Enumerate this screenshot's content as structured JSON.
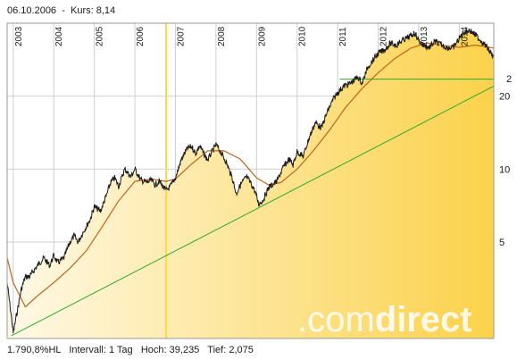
{
  "header": {
    "date": "06.10.2006",
    "separator": "-",
    "price_label": "Kurs:",
    "price_value": "8,14"
  },
  "footer": {
    "change": "1.790,8%HL",
    "interval_label": "Intervall:",
    "interval_value": "1 Tag",
    "high_label": "Hoch:",
    "high_value": "39,235",
    "low_label": "Tief:",
    "low_value": "2,075"
  },
  "logo": {
    "prefix": ".com",
    "suffix": "direct"
  },
  "chart_data": {
    "type": "line",
    "scale": "log",
    "x_tick_labels": [
      "2003",
      "2004",
      "2005",
      "2006",
      "2007",
      "2008",
      "2009",
      "2010",
      "2011",
      "2012",
      "2013",
      "2014"
    ],
    "y_tick_labels": [
      "5",
      "10",
      "20"
    ],
    "y_tick_values": [
      5,
      10,
      20
    ],
    "y_tick_labels_partial": [
      "2"
    ],
    "xlim": [
      2002.85,
      2014.85
    ],
    "ylim": [
      2.0,
      40.0
    ],
    "marker_date": "06.10.2006",
    "marker_x": 2006.77,
    "marker_value": 8.14,
    "grid": true,
    "colors": {
      "price": "#1a1a1a",
      "average": "#c0641c",
      "trendline": "#2ea82e",
      "resistance": "#2ea82e",
      "marker": "#ffd84a",
      "grid": "#cfcfcf",
      "fill_light": "#fff9e6",
      "fill_dark": "#fbd24a"
    },
    "series": [
      {
        "role": "price",
        "x": [
          2002.85,
          2002.95,
          2003.0,
          2003.1,
          2003.2,
          2003.3,
          2003.4,
          2003.5,
          2003.6,
          2003.75,
          2003.9,
          2004.0,
          2004.1,
          2004.25,
          2004.4,
          2004.5,
          2004.6,
          2004.75,
          2004.9,
          2005.0,
          2005.15,
          2005.3,
          2005.4,
          2005.5,
          2005.6,
          2005.75,
          2005.9,
          2006.0,
          2006.15,
          2006.3,
          2006.4,
          2006.5,
          2006.6,
          2006.77,
          2006.9,
          2007.0,
          2007.15,
          2007.3,
          2007.4,
          2007.5,
          2007.6,
          2007.7,
          2007.8,
          2007.9,
          2008.0,
          2008.1,
          2008.25,
          2008.4,
          2008.5,
          2008.6,
          2008.75,
          2008.85,
          2008.95,
          2009.05,
          2009.15,
          2009.3,
          2009.5,
          2009.65,
          2009.8,
          2009.9,
          2010.0,
          2010.15,
          2010.3,
          2010.45,
          2010.6,
          2010.75,
          2010.9,
          2011.0,
          2011.15,
          2011.3,
          2011.5,
          2011.6,
          2011.75,
          2011.9,
          2012.0,
          2012.15,
          2012.3,
          2012.45,
          2012.6,
          2012.75,
          2012.9,
          2013.0,
          2013.1,
          2013.25,
          2013.4,
          2013.55,
          2013.7,
          2013.85,
          2014.0,
          2014.1,
          2014.25,
          2014.4,
          2014.55,
          2014.7,
          2014.85
        ],
        "values": [
          3.4,
          2.5,
          2.1,
          2.6,
          3.2,
          3.6,
          3.6,
          3.8,
          4.0,
          4.3,
          4.0,
          4.4,
          4.1,
          4.3,
          5.0,
          5.3,
          5.0,
          5.6,
          6.2,
          7.0,
          6.7,
          7.8,
          8.8,
          9.2,
          8.5,
          10.0,
          9.3,
          10.0,
          9.0,
          8.8,
          9.0,
          8.6,
          8.9,
          8.14,
          8.6,
          9.2,
          11.0,
          12.2,
          12.4,
          11.6,
          12.5,
          11.5,
          10.9,
          11.8,
          12.6,
          11.9,
          10.7,
          9.2,
          7.9,
          8.6,
          9.3,
          8.8,
          8.2,
          7.2,
          7.4,
          8.4,
          8.9,
          10.1,
          11.0,
          10.4,
          11.8,
          11.3,
          13.5,
          15.6,
          14.8,
          17.3,
          19.5,
          20.7,
          22.0,
          22.5,
          24.0,
          22.6,
          26.5,
          28.6,
          30.0,
          31.0,
          33.0,
          32.5,
          34.0,
          35.0,
          36.5,
          34.0,
          32.6,
          31.7,
          33.6,
          32.6,
          31.7,
          31.7,
          34.6,
          36.6,
          37.5,
          35.7,
          33.7,
          31.5,
          28.8
        ]
      },
      {
        "role": "average",
        "x": [
          2002.85,
          2003.0,
          2003.3,
          2003.6,
          2004.0,
          2004.4,
          2004.8,
          2005.2,
          2005.6,
          2006.0,
          2006.4,
          2006.77,
          2007.0,
          2007.4,
          2007.8,
          2008.2,
          2008.6,
          2009.0,
          2009.3,
          2009.6,
          2010.0,
          2010.4,
          2010.8,
          2011.2,
          2011.6,
          2012.0,
          2012.4,
          2012.8,
          2013.2,
          2013.6,
          2014.0,
          2014.4,
          2014.85
        ],
        "values": [
          4.3,
          3.4,
          2.7,
          3.0,
          3.4,
          3.9,
          4.6,
          5.8,
          7.4,
          8.9,
          9.1,
          8.9,
          9.1,
          10.5,
          11.9,
          11.9,
          11.0,
          9.2,
          8.6,
          8.8,
          10.0,
          11.9,
          14.5,
          18.0,
          21.5,
          25.0,
          28.5,
          31.5,
          33.2,
          32.4,
          31.8,
          32.5,
          31.6
        ]
      }
    ],
    "trendline": {
      "x": [
        2002.95,
        2014.85
      ],
      "values": [
        2.05,
        22.0
      ]
    },
    "resistance": {
      "x": [
        2011.05,
        2014.85
      ],
      "values": [
        23.5,
        23.5
      ]
    }
  }
}
